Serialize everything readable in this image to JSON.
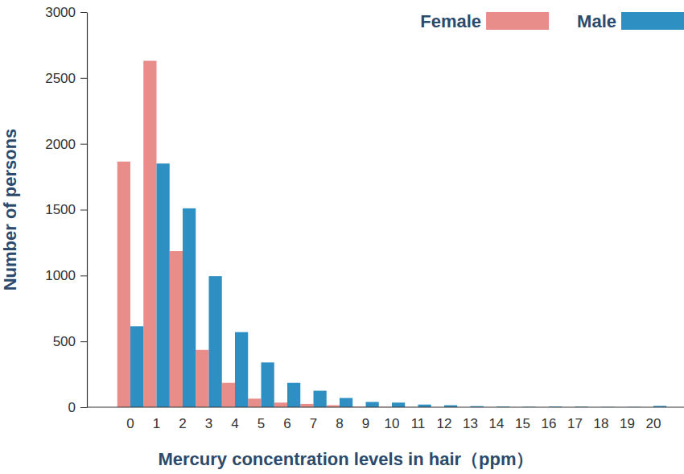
{
  "chart_data": {
    "type": "bar",
    "x_label": "Mercury concentration levels in hair（ppm）",
    "y_label": "Number of persons",
    "categories": [
      "0",
      "1",
      "2",
      "3",
      "4",
      "5",
      "6",
      "7",
      "8",
      "9",
      "10",
      "11",
      "12",
      "13",
      "14",
      "15",
      "16",
      "17",
      "18",
      "19",
      "20"
    ],
    "series": [
      {
        "name": "Female",
        "color": "#e88d8a",
        "values": [
          1865,
          2630,
          1185,
          435,
          185,
          65,
          35,
          25,
          15,
          5,
          3,
          2,
          1,
          0,
          0,
          0,
          0,
          0,
          0,
          0,
          0
        ]
      },
      {
        "name": "Male",
        "color": "#2e8fc2",
        "values": [
          615,
          1850,
          1510,
          995,
          570,
          340,
          185,
          125,
          70,
          40,
          35,
          20,
          15,
          8,
          5,
          3,
          5,
          4,
          2,
          2,
          10
        ]
      }
    ],
    "ylim": [
      0,
      3000
    ],
    "yticks": [
      0,
      500,
      1000,
      1500,
      2000,
      2500,
      3000
    ],
    "grid": false,
    "legend": "top-right"
  }
}
